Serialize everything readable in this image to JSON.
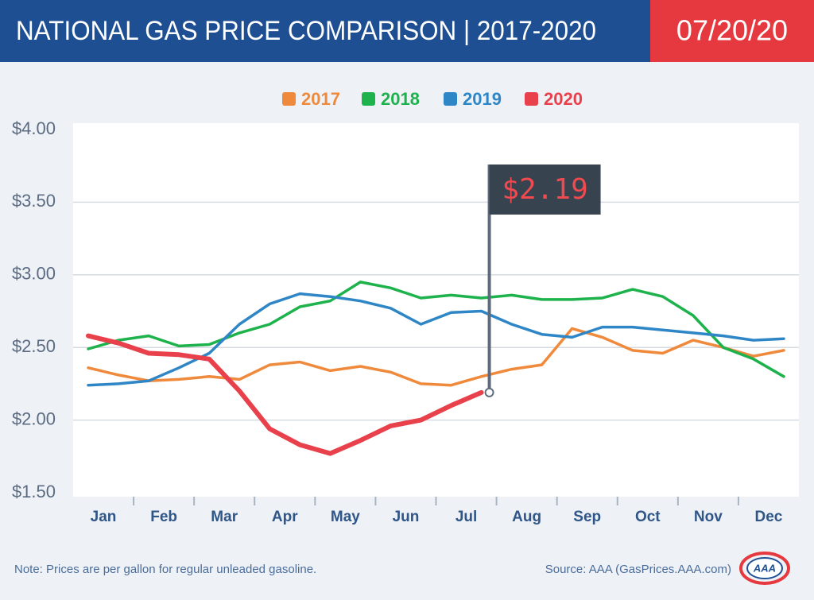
{
  "chart_data": {
    "type": "line",
    "title": "NATIONAL GAS PRICE COMPARISON | 2017-2020",
    "date": "07/20/20",
    "categories": [
      "Jan",
      null,
      "Feb",
      null,
      "Mar",
      null,
      "Apr",
      null,
      "May",
      null,
      "Jun",
      null,
      "Jul",
      null,
      "Aug",
      null,
      "Sep",
      null,
      "Oct",
      null,
      "Nov",
      null,
      "Dec",
      null
    ],
    "series": [
      {
        "name": "2017",
        "color": "#ef8a3c",
        "values": [
          2.36,
          2.31,
          2.27,
          2.28,
          2.3,
          2.28,
          2.38,
          2.4,
          2.34,
          2.37,
          2.33,
          2.25,
          2.24,
          2.3,
          2.35,
          2.38,
          2.63,
          2.57,
          2.48,
          2.46,
          2.55,
          2.5,
          2.44,
          2.48
        ]
      },
      {
        "name": "2018",
        "color": "#1db24b",
        "values": [
          2.49,
          2.55,
          2.58,
          2.51,
          2.52,
          2.6,
          2.66,
          2.78,
          2.82,
          2.95,
          2.91,
          2.84,
          2.86,
          2.84,
          2.86,
          2.83,
          2.83,
          2.84,
          2.9,
          2.85,
          2.72,
          2.5,
          2.42,
          2.3
        ]
      },
      {
        "name": "2019",
        "color": "#2f86c6",
        "values": [
          2.24,
          2.25,
          2.27,
          2.36,
          2.46,
          2.66,
          2.8,
          2.87,
          2.85,
          2.82,
          2.77,
          2.66,
          2.74,
          2.75,
          2.66,
          2.59,
          2.57,
          2.64,
          2.64,
          2.62,
          2.6,
          2.58,
          2.55,
          2.56
        ]
      },
      {
        "name": "2020",
        "color": "#e8414b",
        "values": [
          2.58,
          2.53,
          2.46,
          2.45,
          2.42,
          2.2,
          1.94,
          1.83,
          1.77,
          1.86,
          1.96,
          2.0,
          2.1,
          2.19,
          null,
          null,
          null,
          null,
          null,
          null,
          null,
          null,
          null,
          null
        ],
        "value_labels": [
          null,
          null,
          null,
          null,
          null,
          null,
          null,
          null,
          null,
          null,
          null,
          null,
          null,
          "$2.19",
          null,
          null,
          null,
          null,
          null,
          null,
          null,
          null,
          null,
          null
        ]
      }
    ],
    "ylim": [
      1.5,
      4
    ],
    "yticks": [
      {
        "value": 1.5,
        "label": "$1.50"
      },
      {
        "value": 2,
        "label": "$2.00"
      },
      {
        "value": 2.5,
        "label": "$2.50"
      },
      {
        "value": 3,
        "label": "$3.00"
      },
      {
        "value": 3.5,
        "label": "$3.50"
      },
      {
        "value": 4,
        "label": "$4.00"
      }
    ],
    "grid": true,
    "note": "Note: Prices are per gallon for regular unleaded gasoline.",
    "source": "Source: AAA (GasPrices.AAA.com)",
    "logo": "AAA"
  }
}
